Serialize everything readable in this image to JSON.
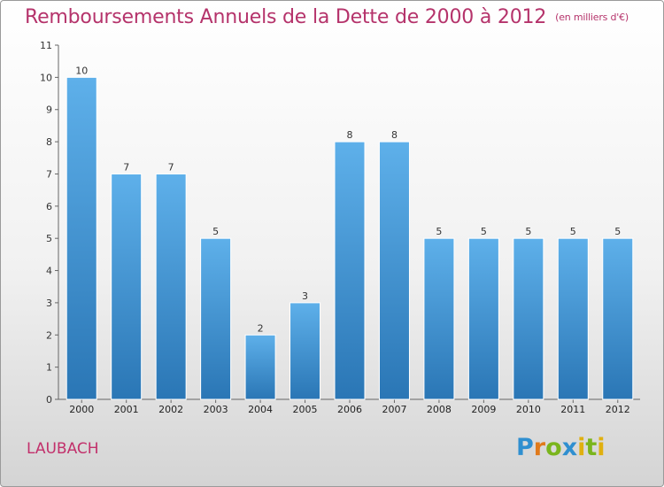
{
  "title": "Remboursements Annuels de la Dette de 2000 à 2012",
  "subtitle": "(en milliers d'€)",
  "city": "LAUBACH",
  "logo": {
    "text": "Proxiti",
    "letters": [
      {
        "ch": "P",
        "color": "#2f8fd0"
      },
      {
        "ch": "r",
        "color": "#e07a1b"
      },
      {
        "ch": "o",
        "color": "#7ab51d"
      },
      {
        "ch": "x",
        "color": "#2f8fd0"
      },
      {
        "ch": "i",
        "color": "#e0b010"
      },
      {
        "ch": "t",
        "color": "#7ab51d"
      },
      {
        "ch": "i",
        "color": "#e0b010"
      }
    ]
  },
  "colors": {
    "title": "#b5336b",
    "bar_top": "#5eb0ea",
    "bar_bottom": "#2a76b5"
  },
  "chart_data": {
    "type": "bar",
    "title": "Remboursements Annuels de la Dette de 2000 à 2012",
    "subtitle": "(en milliers d'€)",
    "categories": [
      "2000",
      "2001",
      "2002",
      "2003",
      "2004",
      "2005",
      "2006",
      "2007",
      "2008",
      "2009",
      "2010",
      "2011",
      "2012"
    ],
    "values": [
      10,
      7,
      7,
      5,
      2,
      3,
      8,
      8,
      5,
      5,
      5,
      5,
      5
    ],
    "ylim": [
      0,
      11
    ],
    "yticks": [
      0,
      1,
      2,
      3,
      4,
      5,
      6,
      7,
      8,
      9,
      10,
      11
    ],
    "grid": false,
    "data_labels": true
  }
}
